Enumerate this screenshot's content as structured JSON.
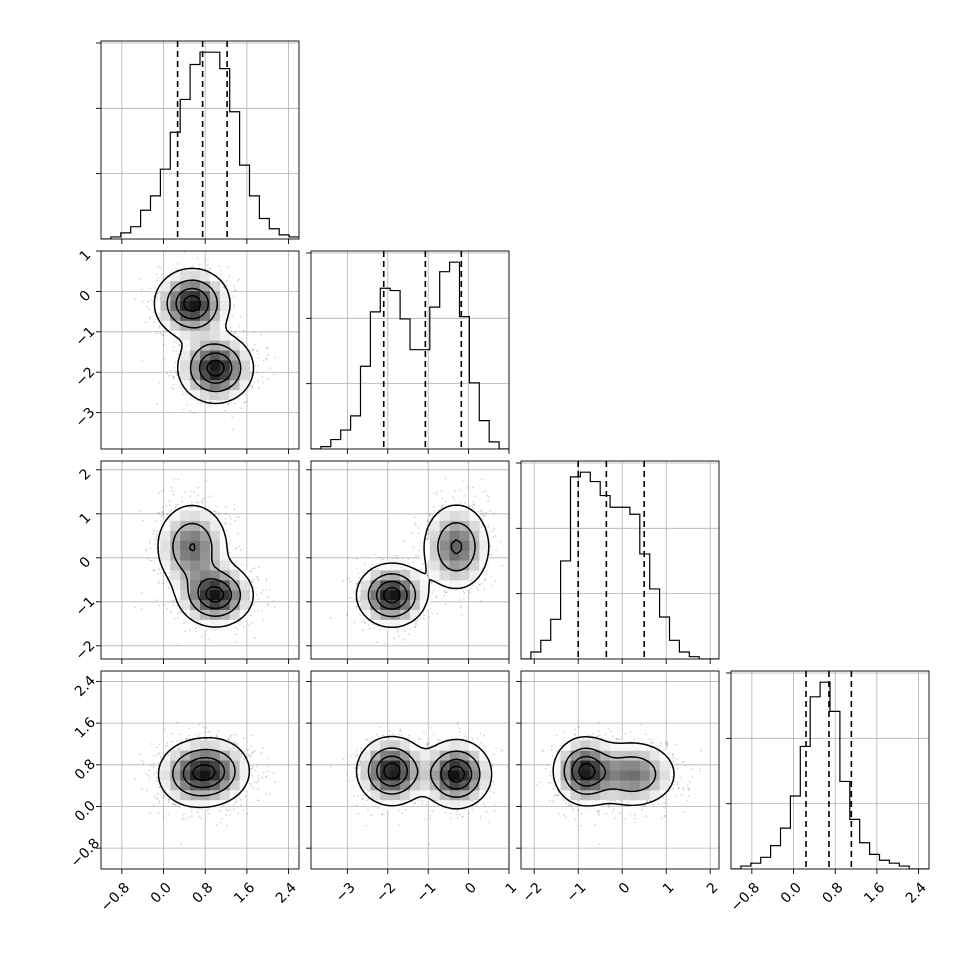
{
  "chart_data": {
    "type": "corner",
    "n_params": 4,
    "params": [
      {
        "range": [
          -1.2,
          2.6
        ],
        "ticks": [
          "-0.8",
          "0.0",
          "0.8",
          "1.6",
          "2.4"
        ],
        "tick_values": [
          -0.8,
          0.0,
          0.8,
          1.6,
          2.4
        ]
      },
      {
        "range": [
          -3.9,
          1.0
        ],
        "ticks": [
          "-3",
          "-2",
          "-1",
          "0",
          "1"
        ],
        "tick_values": [
          -3,
          -2,
          -1,
          0,
          1
        ]
      },
      {
        "range": [
          -2.3,
          2.2
        ],
        "ticks": [
          "-2",
          "-1",
          "0",
          "1",
          "2"
        ],
        "tick_values": [
          -2,
          -1,
          0,
          1,
          2
        ]
      },
      {
        "range": [
          -1.2,
          2.6
        ],
        "ticks": [
          "-0.8",
          "0.0",
          "0.8",
          "1.6",
          "2.4"
        ],
        "tick_values": [
          -0.8,
          0.0,
          0.8,
          1.6,
          2.4
        ]
      }
    ],
    "quantiles": [
      [
        0.27,
        0.75,
        1.22
      ],
      [
        -2.1,
        -1.07,
        -0.18
      ],
      [
        -1.0,
        -0.36,
        0.5
      ],
      [
        0.24,
        0.68,
        1.11
      ]
    ],
    "histograms": [
      {
        "bin_start": -1.2,
        "bin_width": 0.19,
        "counts": [
          0,
          1,
          3,
          6,
          14,
          21,
          34,
          52,
          68,
          85,
          91,
          91,
          83,
          62,
          36,
          21,
          10,
          5,
          2,
          1
        ]
      },
      {
        "bin_start": -3.9,
        "bin_width": 0.245,
        "counts": [
          0,
          1,
          4,
          8,
          14,
          35,
          58,
          68,
          67,
          55,
          42,
          42,
          60,
          75,
          79,
          56,
          28,
          12,
          3,
          0
        ]
      },
      {
        "bin_start": -2.3,
        "bin_width": 0.225,
        "counts": [
          0,
          3,
          8,
          17,
          42,
          78,
          80,
          76,
          70,
          65,
          65,
          62,
          45,
          30,
          18,
          8,
          3,
          1,
          0,
          0
        ]
      },
      {
        "bin_start": -1.2,
        "bin_width": 0.19,
        "counts": [
          0,
          1,
          2,
          4,
          8,
          14,
          25,
          42,
          59,
          64,
          54,
          30,
          17,
          9,
          5,
          3,
          2,
          1,
          0,
          0
        ]
      }
    ],
    "modes": [
      {
        "weight": 0.5,
        "mean": [
          0.55,
          -0.3,
          0.25,
          0.62
        ],
        "sd": [
          0.35,
          0.42,
          0.5,
          0.32
        ]
      },
      {
        "weight": 0.5,
        "mean": [
          1.0,
          -1.9,
          -0.85,
          0.68
        ],
        "sd": [
          0.35,
          0.42,
          0.35,
          0.32
        ]
      }
    ],
    "contour_levels": 4,
    "grid": true
  }
}
